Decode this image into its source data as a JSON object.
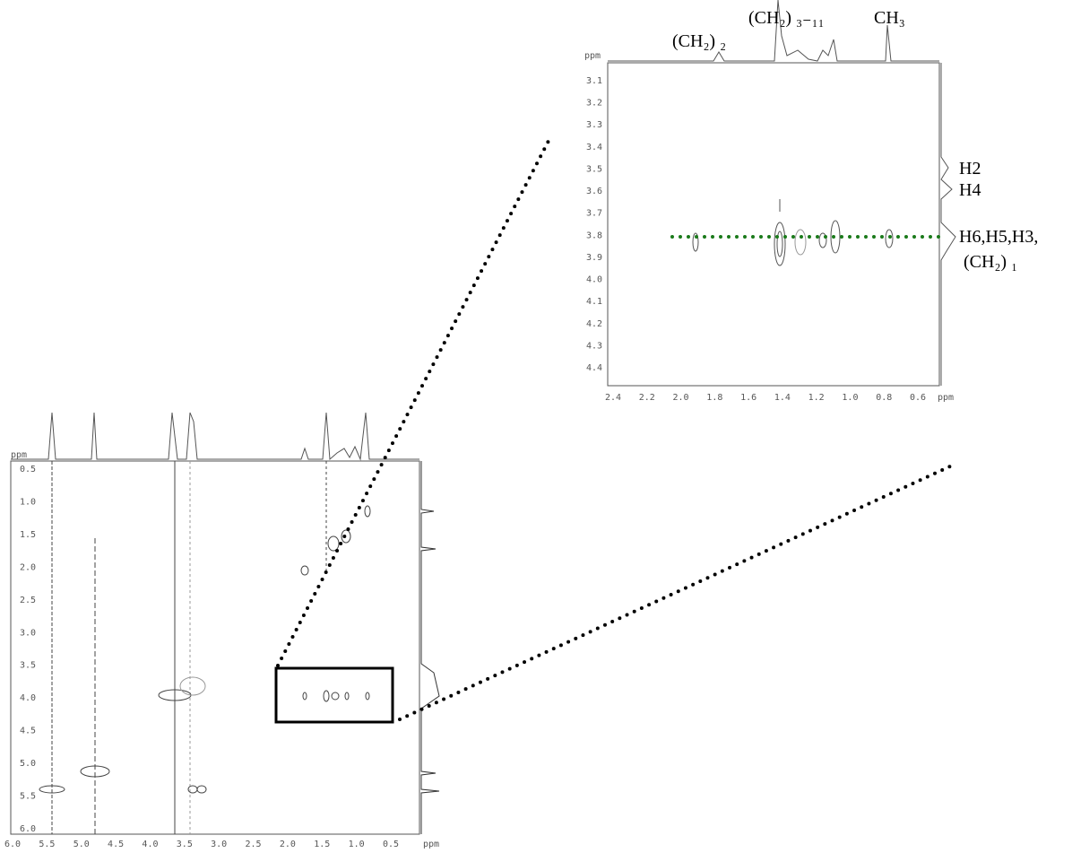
{
  "main_plot": {
    "y_unit": "ppm",
    "x_unit": "ppm",
    "x_ticks": [
      "6.0",
      "5.5",
      "5.0",
      "4.5",
      "4.0",
      "3.5",
      "3.0",
      "2.5",
      "2.0",
      "1.5",
      "1.0",
      "0.5"
    ],
    "y_ticks": [
      "0.5",
      "1.0",
      "1.5",
      "2.0",
      "2.5",
      "3.0",
      "3.5",
      "4.0",
      "4.5",
      "5.0",
      "5.5",
      "6.0"
    ]
  },
  "inset_plot": {
    "y_unit": "ppm",
    "x_unit": "ppm",
    "x_ticks": [
      "2.4",
      "2.2",
      "2.0",
      "1.8",
      "1.6",
      "1.4",
      "1.2",
      "1.0",
      "0.8",
      "0.6"
    ],
    "y_ticks": [
      "3.1",
      "3.2",
      "3.3",
      "3.4",
      "3.5",
      "3.6",
      "3.7",
      "3.8",
      "3.9",
      "4.0",
      "4.1",
      "4.2",
      "4.3",
      "4.4"
    ]
  },
  "annotations": [
    "(CH₂) ₂",
    "(CH₂) ₃₋₁₁",
    "CH₃",
    "H2",
    "H4",
    "H6,H5,H3,",
    "(CH₂) ₁"
  ]
}
